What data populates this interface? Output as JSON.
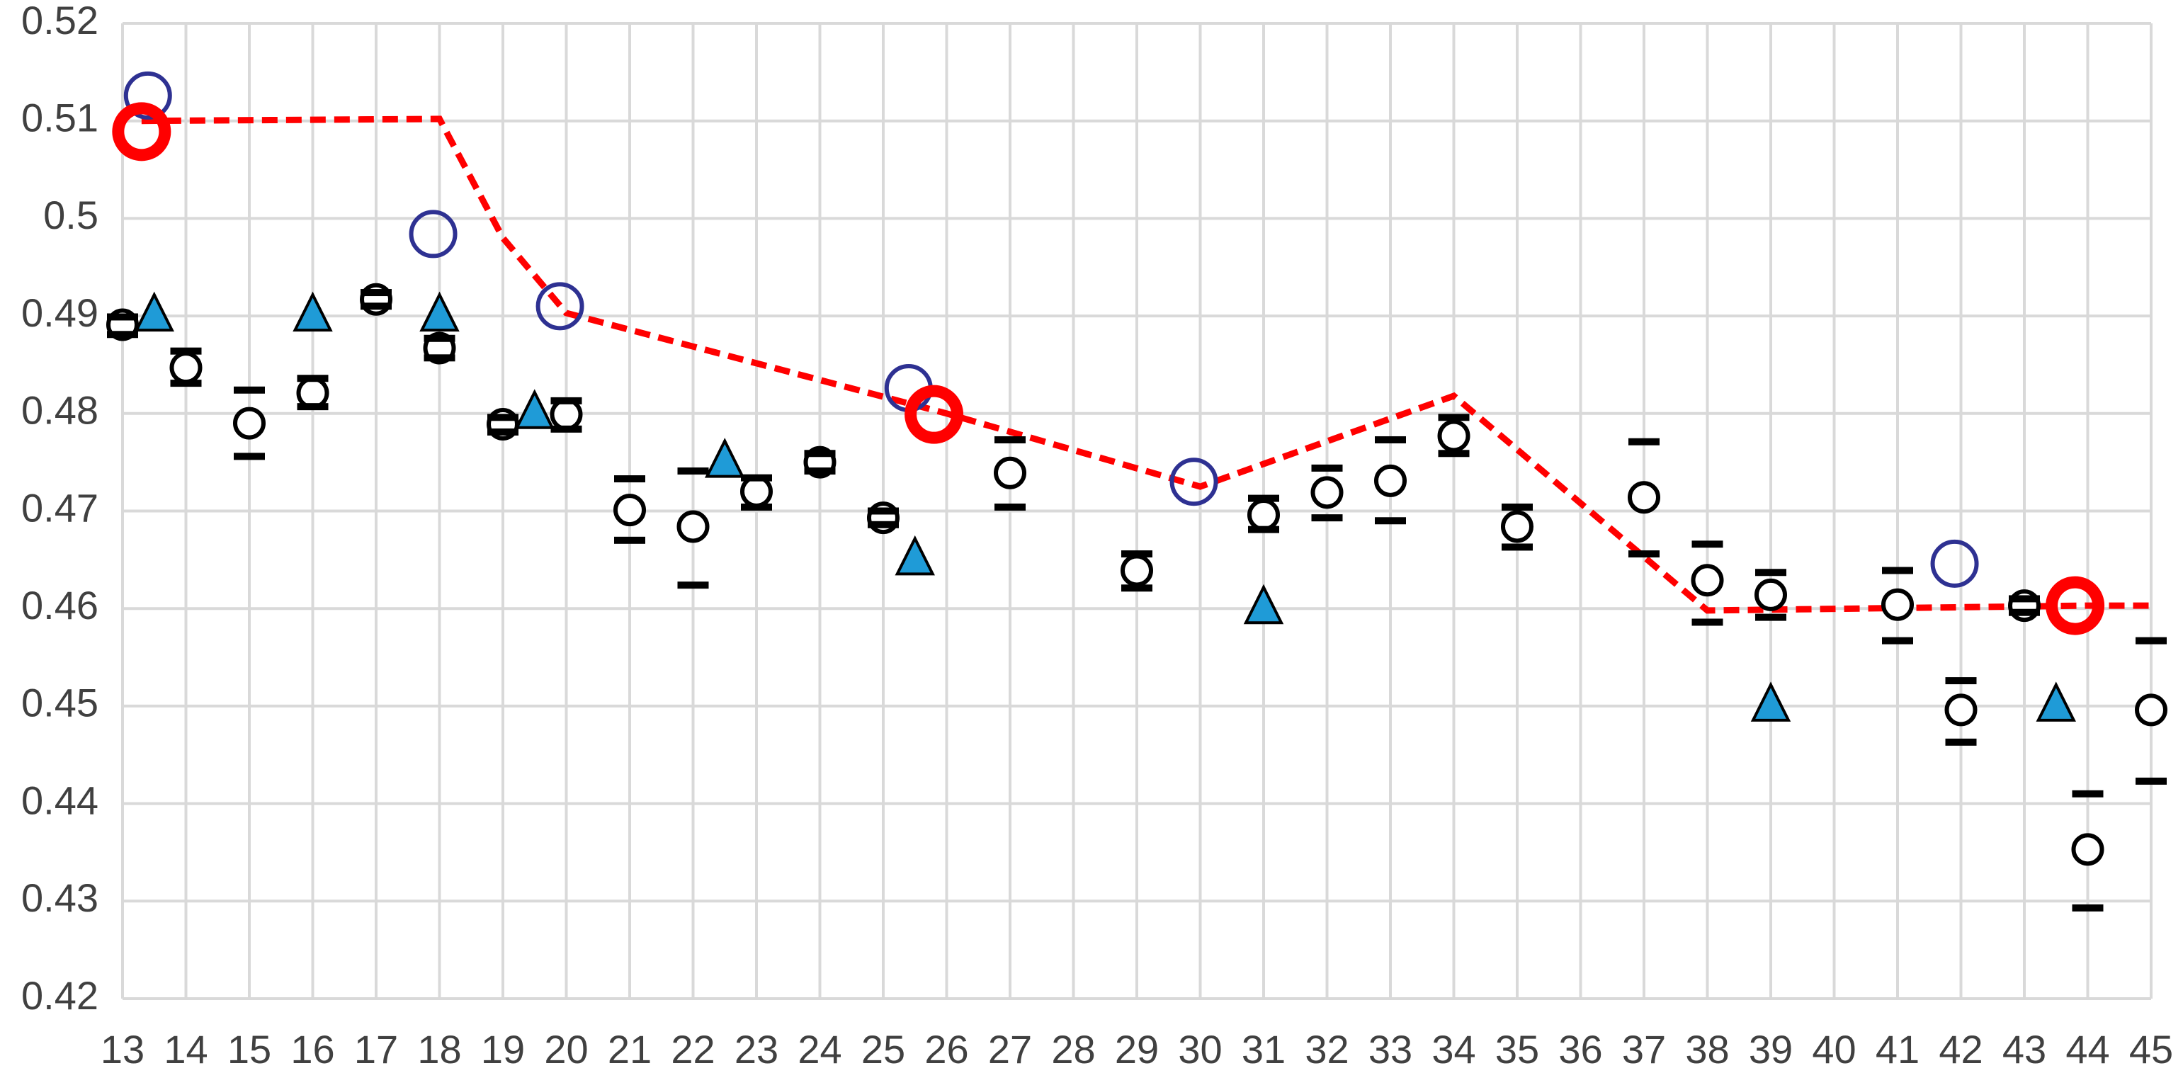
{
  "chart_data": {
    "type": "scatter",
    "xlim": [
      13,
      45
    ],
    "xticks": [
      13,
      14,
      15,
      16,
      17,
      18,
      19,
      20,
      21,
      22,
      23,
      24,
      25,
      26,
      27,
      28,
      29,
      30,
      31,
      32,
      33,
      34,
      35,
      36,
      37,
      38,
      39,
      40,
      41,
      42,
      43,
      44,
      45
    ],
    "ylim": [
      0.42,
      0.52
    ],
    "yticks": [
      0.42,
      0.43,
      0.44,
      0.45,
      0.46,
      0.47,
      0.48,
      0.49,
      0.5,
      0.51,
      0.52
    ],
    "grid": true,
    "series": [
      {
        "style": "dashed-line",
        "color": "#ff0000",
        "x": [
          13.3,
          18,
          19,
          20,
          26,
          30,
          34,
          38,
          44,
          45
        ],
        "values": [
          0.51,
          0.5102,
          0.498,
          0.4903,
          0.48,
          0.4725,
          0.4818,
          0.4598,
          0.4603,
          0.4603
        ]
      },
      {
        "style": "errorbar",
        "color": "#000000",
        "x": [
          13,
          14,
          15,
          16,
          17,
          18,
          19,
          20,
          21,
          22,
          23,
          24,
          25,
          27,
          29,
          31,
          32,
          33,
          34,
          35,
          37,
          38,
          39,
          41,
          42,
          43,
          44,
          45
        ],
        "values": [
          0.4891,
          0.4847,
          0.479,
          0.4821,
          0.4917,
          0.4867,
          0.4789,
          0.4799,
          0.4701,
          0.4684,
          0.472,
          0.475,
          0.4693,
          0.4739,
          0.4639,
          0.4696,
          0.4719,
          0.4731,
          0.4777,
          0.4684,
          0.4714,
          0.4629,
          0.4614,
          0.4604,
          0.4496,
          0.4603,
          0.4353,
          0.4496
        ],
        "lower": [
          0.4881,
          0.4831,
          0.4756,
          0.4807,
          0.491,
          0.4857,
          0.4781,
          0.4784,
          0.467,
          0.4624,
          0.4704,
          0.4741,
          0.4686,
          0.4704,
          0.4621,
          0.4681,
          0.4693,
          0.469,
          0.4759,
          0.4663,
          0.4656,
          0.4586,
          0.4591,
          0.4567,
          0.4463,
          0.4596,
          0.4293,
          0.4423
        ],
        "upper": [
          0.4899,
          0.4864,
          0.4824,
          0.4836,
          0.4924,
          0.4877,
          0.4796,
          0.4813,
          0.4733,
          0.4741,
          0.4734,
          0.4759,
          0.47,
          0.4773,
          0.4656,
          0.4713,
          0.4744,
          0.4773,
          0.4796,
          0.4704,
          0.4771,
          0.4666,
          0.4637,
          0.4639,
          0.4526,
          0.461,
          0.441,
          0.4567
        ]
      },
      {
        "style": "triangle",
        "color": "#1f9bd7",
        "x": [
          13.5,
          16,
          18,
          19.5,
          22.5,
          25.5,
          31,
          39,
          43.5
        ],
        "values": [
          0.49,
          0.49,
          0.49,
          0.48,
          0.475,
          0.465,
          0.46,
          0.45,
          0.45
        ]
      },
      {
        "style": "ring",
        "color": "#2e3192",
        "x": [
          13.4,
          17.9,
          19.9,
          25.4,
          29.9,
          41.9
        ],
        "values": [
          0.5126,
          0.4984,
          0.491,
          0.4826,
          0.473,
          0.4646
        ]
      },
      {
        "style": "bold-ring",
        "color": "#ff0000",
        "x": [
          13.3,
          25.8,
          43.8
        ],
        "values": [
          0.5089,
          0.4799,
          0.4603
        ]
      }
    ]
  }
}
